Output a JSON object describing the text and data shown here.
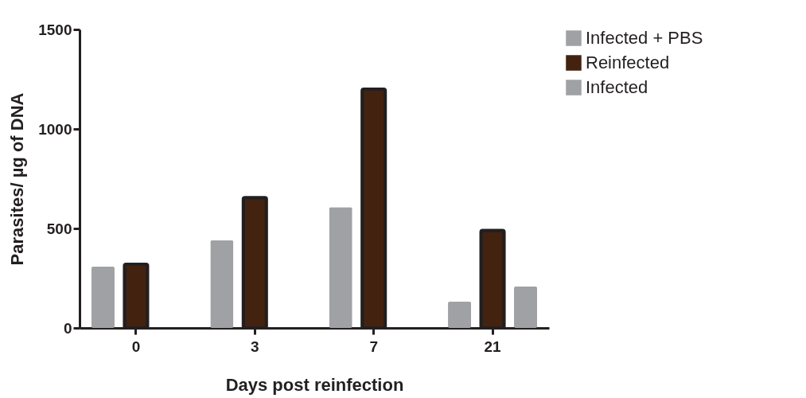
{
  "chart_data": {
    "type": "bar",
    "xlabel": "Days post reinfection",
    "ylabel": "Parasites/ µg of DNA",
    "categories": [
      "0",
      "3",
      "7",
      "21"
    ],
    "series": [
      {
        "name": "Infected + PBS",
        "color": "#a0a1a5",
        "values": [
          308,
          440,
          607,
          132
        ]
      },
      {
        "name": "Reinfected",
        "color": "#43230f",
        "values": [
          320,
          655,
          1200,
          490
        ]
      },
      {
        "name": "Infected",
        "color": "#a0a1a5",
        "values": [
          null,
          null,
          null,
          208
        ]
      }
    ],
    "ylim": [
      0,
      1500
    ],
    "yticks": [
      0,
      500,
      1000,
      1500
    ],
    "grid": false,
    "legend": "right"
  }
}
